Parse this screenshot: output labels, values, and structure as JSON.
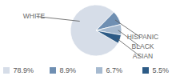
{
  "chart_data": {
    "type": "pie",
    "categories": [
      "WHITE",
      "HISPANIC",
      "BLACK",
      "ASIAN"
    ],
    "values": [
      78.9,
      8.9,
      6.7,
      5.5
    ],
    "value_labels": [
      "78.9%",
      "8.9%",
      "6.7%",
      "5.5%"
    ],
    "colors": [
      "#d6dde8",
      "#6f8fb2",
      "#a6bad0",
      "#2d5b86"
    ],
    "data_labels": true
  }
}
